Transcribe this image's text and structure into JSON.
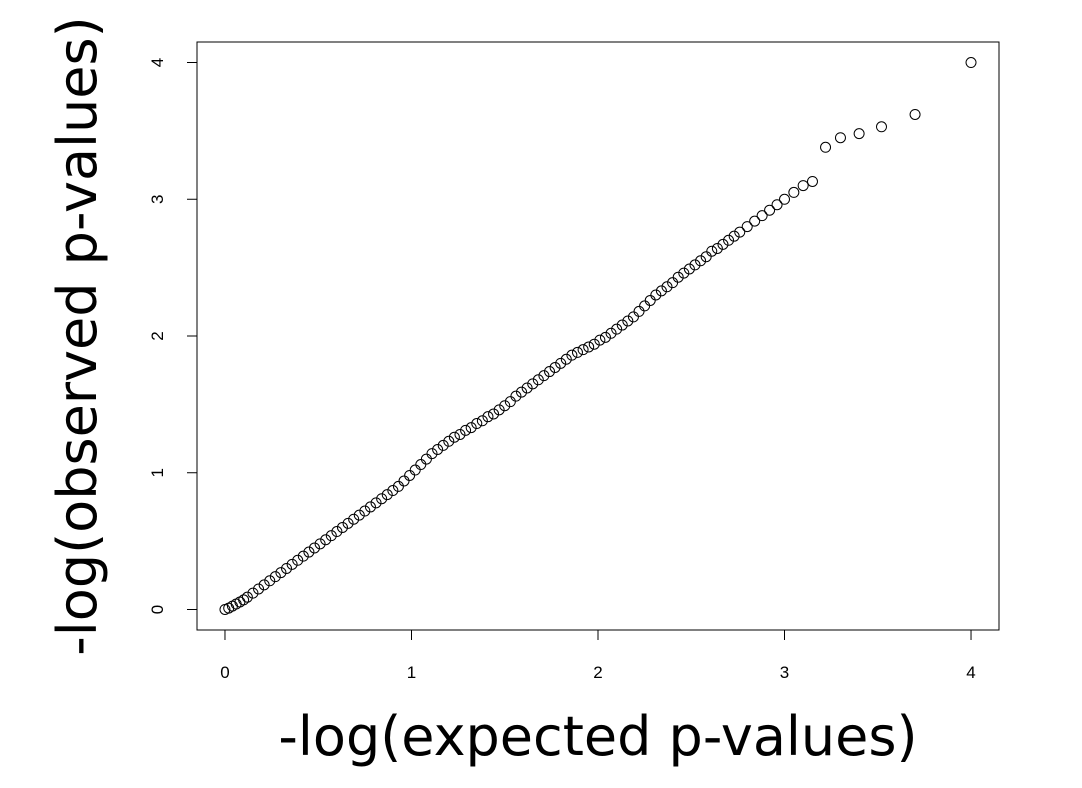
{
  "chart_data": {
    "type": "scatter",
    "title": "",
    "xlabel": "-log(expected p-values)",
    "ylabel": "-log(observed p-values)",
    "xlim": [
      -0.15,
      4.15
    ],
    "ylim": [
      -0.15,
      4.15
    ],
    "x_ticks": [
      0,
      1,
      2,
      3,
      4
    ],
    "y_ticks": [
      0,
      1,
      2,
      3,
      4
    ],
    "x_tick_labels": [
      "0",
      "1",
      "2",
      "3",
      "4"
    ],
    "y_tick_labels": [
      "0",
      "1",
      "2",
      "3",
      "4"
    ],
    "grid": false,
    "legend": "none",
    "marker": "open-circle",
    "marker_color": "#000000",
    "series": [
      {
        "x": [
          0.0,
          0.02,
          0.04,
          0.06,
          0.08,
          0.1,
          0.12,
          0.15,
          0.18,
          0.21,
          0.24,
          0.27,
          0.3,
          0.33,
          0.36,
          0.39,
          0.42,
          0.45,
          0.48,
          0.51,
          0.54,
          0.57,
          0.6,
          0.63,
          0.66,
          0.69,
          0.72,
          0.75,
          0.78,
          0.81,
          0.84,
          0.87,
          0.9,
          0.93,
          0.96,
          0.99,
          1.02,
          1.05,
          1.08,
          1.11,
          1.14,
          1.17,
          1.2,
          1.23,
          1.26,
          1.29,
          1.32,
          1.35,
          1.38,
          1.41,
          1.44,
          1.47,
          1.5,
          1.53,
          1.56,
          1.59,
          1.62,
          1.65,
          1.68,
          1.71,
          1.74,
          1.77,
          1.8,
          1.83,
          1.86,
          1.89,
          1.92,
          1.95,
          1.98,
          2.01,
          2.04,
          2.07,
          2.1,
          2.13,
          2.16,
          2.19,
          2.22,
          2.25,
          2.28,
          2.31,
          2.34,
          2.37,
          2.4,
          2.43,
          2.46,
          2.49,
          2.52,
          2.55,
          2.58,
          2.61,
          2.64,
          2.67,
          2.7,
          2.73,
          2.76,
          2.8,
          2.84,
          2.88,
          2.92,
          2.96,
          3.0,
          3.05,
          3.1,
          3.15,
          3.22,
          3.3,
          3.4,
          3.52,
          3.7,
          4.0
        ],
        "y": [
          0.0,
          0.01,
          0.025,
          0.04,
          0.055,
          0.07,
          0.09,
          0.12,
          0.15,
          0.18,
          0.21,
          0.24,
          0.27,
          0.3,
          0.33,
          0.36,
          0.39,
          0.42,
          0.45,
          0.48,
          0.51,
          0.54,
          0.57,
          0.6,
          0.63,
          0.66,
          0.69,
          0.72,
          0.75,
          0.78,
          0.81,
          0.84,
          0.87,
          0.9,
          0.94,
          0.98,
          1.02,
          1.06,
          1.1,
          1.14,
          1.17,
          1.2,
          1.23,
          1.26,
          1.28,
          1.31,
          1.33,
          1.36,
          1.38,
          1.41,
          1.43,
          1.46,
          1.49,
          1.52,
          1.56,
          1.59,
          1.62,
          1.65,
          1.68,
          1.71,
          1.74,
          1.77,
          1.8,
          1.83,
          1.86,
          1.88,
          1.9,
          1.92,
          1.94,
          1.97,
          1.99,
          2.02,
          2.05,
          2.08,
          2.11,
          2.14,
          2.18,
          2.22,
          2.26,
          2.3,
          2.33,
          2.36,
          2.39,
          2.43,
          2.46,
          2.49,
          2.52,
          2.55,
          2.58,
          2.62,
          2.64,
          2.67,
          2.7,
          2.73,
          2.76,
          2.8,
          2.84,
          2.88,
          2.92,
          2.96,
          3.0,
          3.05,
          3.1,
          3.13,
          3.38,
          3.45,
          3.48,
          3.53,
          3.62,
          4.0
        ]
      }
    ]
  }
}
